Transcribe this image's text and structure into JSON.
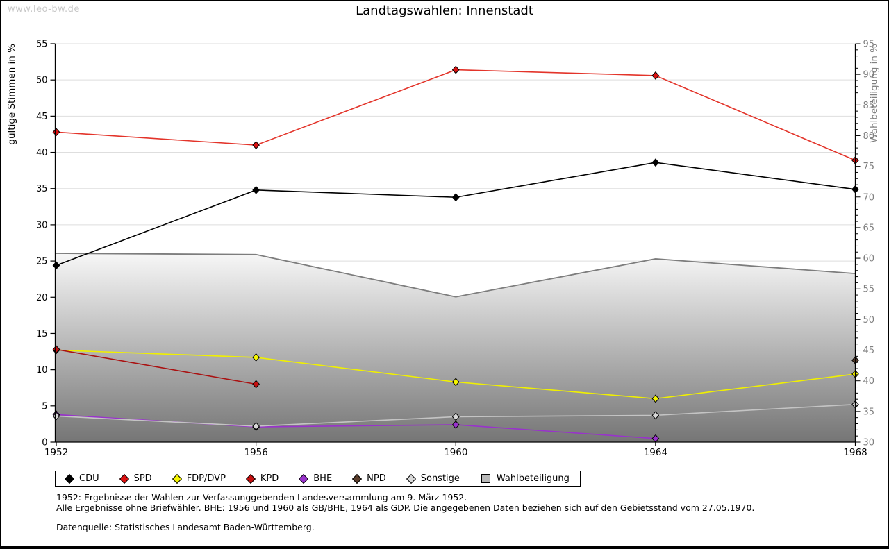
{
  "page": {
    "watermark": "www.leo-bw.de",
    "title": "Landtagswahlen: Innenstadt"
  },
  "chart_data": {
    "type": "line",
    "title": "Landtagswahlen: Innenstadt",
    "x": [
      1952,
      1956,
      1960,
      1964,
      1968
    ],
    "xticks": [
      "1952",
      "1956",
      "1960",
      "1964",
      "1968"
    ],
    "ylabel_left": "gültige Stimmen in %",
    "ylabel_right": "Wahlbeteiligung in %",
    "ylim_left": [
      0,
      55
    ],
    "ylim_right": [
      30,
      95
    ],
    "yticks_left": [
      0,
      5,
      10,
      15,
      20,
      25,
      30,
      35,
      40,
      45,
      50,
      55
    ],
    "yticks_right": [
      30,
      35,
      40,
      45,
      50,
      55,
      60,
      65,
      70,
      75,
      80,
      85,
      90,
      95
    ],
    "grid": true,
    "legend_position": "bottom",
    "series": [
      {
        "name": "CDU",
        "type": "line",
        "axis": "left",
        "color": "#000000",
        "marker_fill": "#000000",
        "values": [
          24.4,
          34.8,
          33.8,
          38.6,
          34.9
        ]
      },
      {
        "name": "SPD",
        "type": "line",
        "axis": "left",
        "color": "#e3342a",
        "marker_fill": "#dd1111",
        "values": [
          42.8,
          41.0,
          51.4,
          50.6,
          38.9
        ]
      },
      {
        "name": "FDP/DVP",
        "type": "line",
        "axis": "left",
        "color": "#f0f000",
        "marker_fill": "#f5f500",
        "values": [
          12.7,
          11.7,
          8.3,
          6.0,
          9.4
        ]
      },
      {
        "name": "KPD",
        "type": "line",
        "axis": "left",
        "color": "#aa1111",
        "marker_fill": "#c40f0f",
        "values": [
          12.8,
          8.0,
          null,
          null,
          null
        ]
      },
      {
        "name": "BHE",
        "type": "line",
        "axis": "left",
        "color": "#9932cc",
        "marker_fill": "#9932cc",
        "values": [
          3.8,
          2.1,
          2.4,
          0.5,
          null
        ]
      },
      {
        "name": "NPD",
        "type": "line",
        "axis": "left",
        "color": "#5a3d2b",
        "marker_fill": "#5a3d2b",
        "values": [
          null,
          null,
          null,
          null,
          11.3
        ]
      },
      {
        "name": "Sonstige",
        "type": "line",
        "axis": "left",
        "color": "#c4c4c4",
        "marker_fill": "#d8d8d8",
        "values": [
          3.6,
          2.2,
          3.5,
          3.7,
          5.2
        ]
      },
      {
        "name": "Wahlbeteiligung",
        "type": "area",
        "axis": "right",
        "color": "#7d7d7d",
        "marker_fill": "#b8b8b8",
        "values": [
          60.8,
          60.6,
          53.7,
          59.9,
          57.5
        ]
      }
    ],
    "style": {
      "gridline_color": "#dedede",
      "axis_color": "#000000",
      "right_axis_text_color": "#808080",
      "area_gradient_top": "#f7f7f7",
      "area_gradient_bottom": "#757575",
      "area_edge_color": "#7d7d7d"
    }
  },
  "footnotes": {
    "line1": "1952: Ergebnisse der Wahlen zur Verfassunggebenden Landesversammlung am 9. März 1952.",
    "line2": "Alle Ergebnisse ohne Briefwähler. BHE: 1956 und 1960 als GB/BHE, 1964 als GDP. Die angegebenen Daten beziehen sich auf den Gebietsstand vom 27.05.1970.",
    "line3": "Datenquelle: Statistisches Landesamt Baden-Württemberg."
  }
}
